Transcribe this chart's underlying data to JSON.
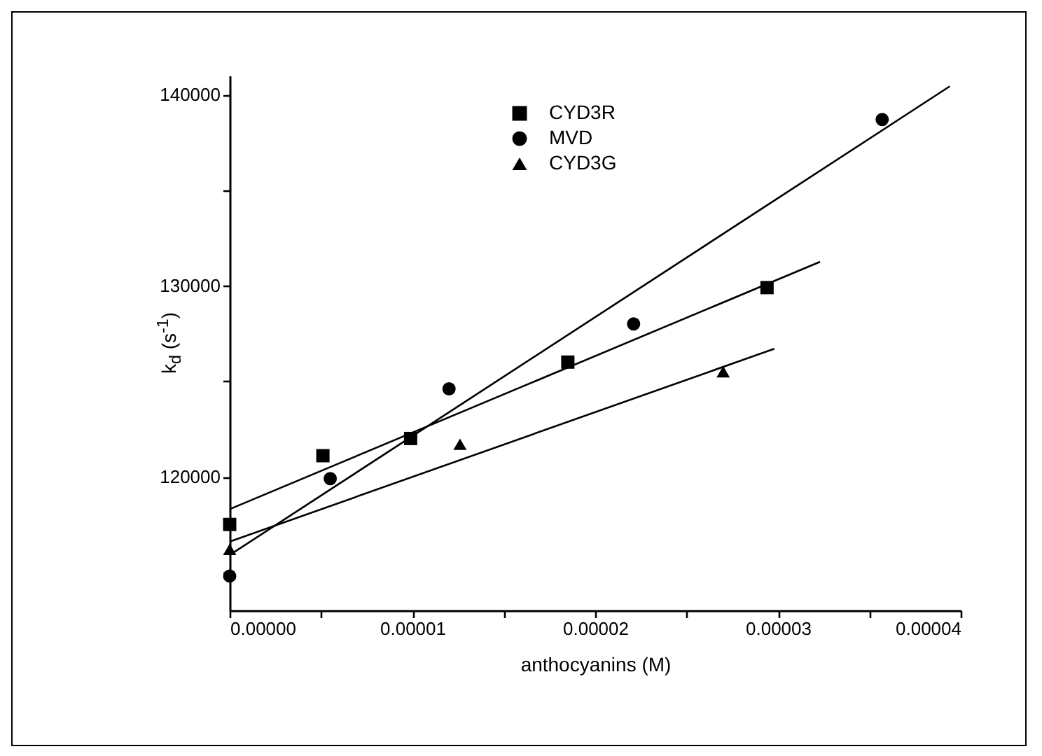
{
  "chart_data": {
    "type": "scatter",
    "xlabel": "anthocyanins (M)",
    "ylabel": "k$_{d}$ (s$^{-1}$)",
    "xlim": [
      0,
      4e-05
    ],
    "ylim": [
      113000,
      141000
    ],
    "xticks": [
      {
        "value": 0,
        "label": "0.00000"
      },
      {
        "value": 5e-06,
        "label": null
      },
      {
        "value": 1e-05,
        "label": "0.00001"
      },
      {
        "value": 1.5e-05,
        "label": null
      },
      {
        "value": 2e-05,
        "label": "0.00002"
      },
      {
        "value": 2.5e-05,
        "label": null
      },
      {
        "value": 3e-05,
        "label": "0.00003"
      },
      {
        "value": 3.5e-05,
        "label": null
      },
      {
        "value": 4e-05,
        "label": "0.00004"
      }
    ],
    "yticks": [
      {
        "value": 115000,
        "label": null
      },
      120000,
      {
        "value": 125000,
        "label": null
      },
      130000,
      {
        "value": 135000,
        "label": null
      },
      140000
    ],
    "grid": false,
    "legend": "top left",
    "series": [
      {
        "name": "CYD3R",
        "marker": "square",
        "color": "#000000",
        "x": [
          0,
          5.1e-06,
          9.9e-06,
          1.85e-05,
          2.94e-05
        ],
        "values": [
          117500,
          121100,
          122000,
          126000,
          129900
        ]
      },
      {
        "name": "MVD",
        "marker": "circle",
        "color": "#000000",
        "x": [
          0,
          5.5e-06,
          1.2e-05,
          2.21e-05,
          3.57e-05
        ],
        "values": [
          114800,
          119900,
          124600,
          128000,
          138700
        ]
      },
      {
        "name": "CYD3G",
        "marker": "triangle",
        "color": "#000000",
        "x": [
          0,
          1.26e-05,
          2.7e-05
        ],
        "values": [
          116200,
          121700,
          125500
        ]
      },
      {
        "type": "line",
        "color": "#000000",
        "x": [
          0,
          3.23e-05
        ],
        "values": [
          118300,
          131250
        ]
      },
      {
        "type": "line",
        "color": "#000000",
        "x": [
          0,
          3.94e-05
        ],
        "values": [
          115900,
          140440
        ]
      },
      {
        "type": "line",
        "color": "#000000",
        "x": [
          0,
          2.98e-05
        ],
        "values": [
          116600,
          126700
        ]
      }
    ]
  }
}
